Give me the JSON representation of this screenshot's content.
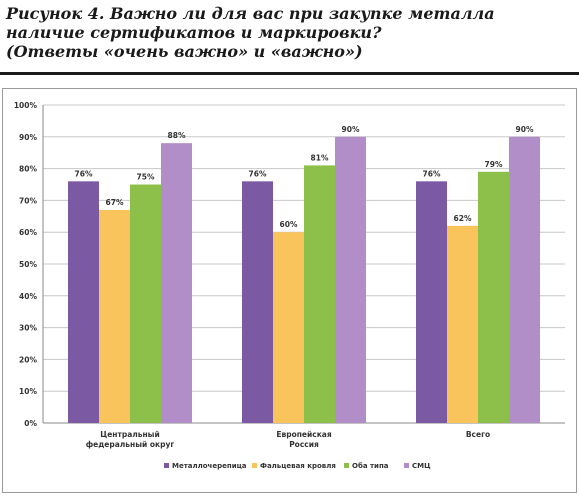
{
  "caption": {
    "line1": "Рисунок 4. Важно ли для вас при закупке металла",
    "line2": "наличие сертификатов и маркировки?",
    "line3": "(Ответы «очень важно» и «важно»)"
  },
  "chart_data": {
    "type": "bar",
    "title": "",
    "xlabel": "",
    "ylabel": "",
    "ylim": [
      0,
      100
    ],
    "y_ticks": [
      "0%",
      "10%",
      "20%",
      "30%",
      "40%",
      "50%",
      "60%",
      "70%",
      "80%",
      "90%",
      "100%"
    ],
    "grid": true,
    "legend_position": "bottom",
    "categories": [
      [
        "Центральный",
        "федеральный округ"
      ],
      [
        "Европейская",
        "Россия"
      ],
      [
        "Всего"
      ]
    ],
    "series": [
      {
        "name": "Металлочерепица",
        "color": "#7b5aa3",
        "values": [
          76,
          76,
          76
        ],
        "labels": [
          "76%",
          "76%",
          "76%"
        ]
      },
      {
        "name": "Фальцевая кровля",
        "color": "#f9c45c",
        "values": [
          67,
          60,
          62
        ],
        "labels": [
          "67%",
          "60%",
          "62%"
        ]
      },
      {
        "name": "Оба типа",
        "color": "#8dc04b",
        "values": [
          75,
          81,
          79
        ],
        "labels": [
          "75%",
          "81%",
          "79%"
        ]
      },
      {
        "name": "СМЦ",
        "color": "#b28ec8",
        "values": [
          88,
          90,
          90
        ],
        "labels": [
          "88%",
          "90%",
          "90%"
        ]
      }
    ]
  }
}
